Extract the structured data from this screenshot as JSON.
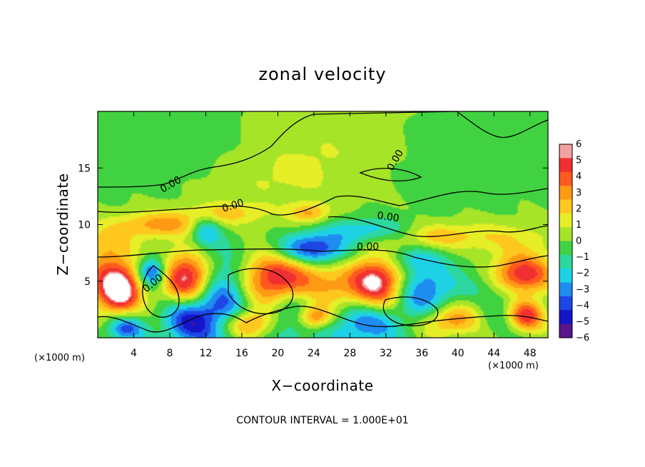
{
  "chart_data": {
    "type": "heatmap",
    "title": "zonal velocity",
    "xlabel": "X−coordinate",
    "ylabel": "Z−coordinate",
    "x_unit_left": "(×1000 m)",
    "x_unit_right": "(×1000 m)",
    "xlim": [
      0,
      50
    ],
    "ylim": [
      0,
      20
    ],
    "xticks": [
      4,
      8,
      12,
      16,
      20,
      24,
      28,
      32,
      36,
      40,
      44,
      48
    ],
    "yticks": [
      5,
      10,
      15
    ],
    "colorbar": {
      "ticks": [
        "6",
        "5",
        "4",
        "3",
        "2",
        "1",
        "0",
        "−1",
        "−2",
        "−3",
        "−4",
        "−5",
        "−6"
      ],
      "colors": [
        "#f4a0a0",
        "#f03030",
        "#ff5a1e",
        "#ff9a14",
        "#ffc81e",
        "#e6ee28",
        "#a6e428",
        "#40d240",
        "#2cd8a0",
        "#1ed2e6",
        "#1e8cf0",
        "#1e46e6",
        "#1414c8",
        "#5a148c"
      ]
    },
    "zero_contour_labels": [
      "0.00",
      "0.00",
      "0.00",
      "0.00",
      "0.00",
      "0.00"
    ],
    "contour_interval_text": "CONTOUR INTERVAL = 1.000E+01",
    "blobs": [
      {
        "x": 1.5,
        "z": 5.2,
        "v": 4.5,
        "rx": 2.2,
        "rz": 1.8
      },
      {
        "x": 2.5,
        "z": 4.0,
        "v": 5.2,
        "rx": 1.5,
        "rz": 1.3
      },
      {
        "x": 6.0,
        "z": 5.8,
        "v": -5.5,
        "rx": 1.1,
        "rz": 0.9
      },
      {
        "x": 10.0,
        "z": 5.2,
        "v": 7.0,
        "rx": 2.0,
        "rz": 1.6
      },
      {
        "x": 14.0,
        "z": 3.5,
        "v": -5.0,
        "rx": 2.3,
        "rz": 2.8
      },
      {
        "x": 20.0,
        "z": 5.0,
        "v": 7.0,
        "rx": 3.2,
        "rz": 2.0
      },
      {
        "x": 22.5,
        "z": 2.5,
        "v": -5.5,
        "rx": 2.8,
        "rz": 1.8
      },
      {
        "x": 24.0,
        "z": 1.8,
        "v": 6.5,
        "rx": 1.5,
        "rz": 0.8
      },
      {
        "x": 23.5,
        "z": 7.8,
        "v": -6.0,
        "rx": 3.0,
        "rz": 1.0
      },
      {
        "x": 25.5,
        "z": 4.0,
        "v": 3.5,
        "rx": 2.5,
        "rz": 1.5
      },
      {
        "x": 31.0,
        "z": 4.8,
        "v": 7.0,
        "rx": 2.2,
        "rz": 2.0
      },
      {
        "x": 30.0,
        "z": 1.5,
        "v": -5.0,
        "rx": 2.5,
        "rz": 1.5
      },
      {
        "x": 36.0,
        "z": 4.0,
        "v": -4.0,
        "rx": 2.2,
        "rz": 2.0
      },
      {
        "x": 39.0,
        "z": 1.5,
        "v": 4.5,
        "rx": 2.5,
        "rz": 1.0
      },
      {
        "x": 47.0,
        "z": 5.5,
        "v": 7.0,
        "rx": 2.5,
        "rz": 1.3
      },
      {
        "x": 47.5,
        "z": 2.0,
        "v": 6.5,
        "rx": 1.5,
        "rz": 1.0
      },
      {
        "x": 44.0,
        "z": 3.5,
        "v": -3.0,
        "rx": 3.5,
        "rz": 2.0
      },
      {
        "x": 3.0,
        "z": 0.8,
        "v": -4.5,
        "rx": 1.5,
        "rz": 0.8
      },
      {
        "x": 10.0,
        "z": 1.5,
        "v": -5.0,
        "rx": 2.0,
        "rz": 1.5
      },
      {
        "x": 16.5,
        "z": 1.2,
        "v": 5.0,
        "rx": 2.0,
        "rz": 0.9
      },
      {
        "x": 7.0,
        "z": 10.0,
        "v": 3.5,
        "rx": 3.5,
        "rz": 0.8
      },
      {
        "x": 12.0,
        "z": 9.5,
        "v": -3.5,
        "rx": 1.2,
        "rz": 1.0
      },
      {
        "x": 14.0,
        "z": 11.0,
        "v": 2.5,
        "rx": 3.0,
        "rz": 0.7
      },
      {
        "x": 23.5,
        "z": 11.0,
        "v": 3.0,
        "rx": 1.5,
        "rz": 0.6
      },
      {
        "x": 30.0,
        "z": 9.5,
        "v": -2.8,
        "rx": 3.5,
        "rz": 0.8
      },
      {
        "x": 37.5,
        "z": 9.0,
        "v": 2.5,
        "rx": 3.0,
        "rz": 0.8
      },
      {
        "x": 45.0,
        "z": 8.8,
        "v": 1.8,
        "rx": 4.0,
        "rz": 1.0
      },
      {
        "x": 20.0,
        "z": 14.0,
        "v": 1.0,
        "rx": 6.0,
        "rz": 2.0
      },
      {
        "x": 26.0,
        "z": 17.5,
        "v": 0.8,
        "rx": 6.0,
        "rz": 2.5
      },
      {
        "x": 8.0,
        "z": 17.0,
        "v": -0.8,
        "rx": 6.0,
        "rz": 2.5
      },
      {
        "x": 40.0,
        "z": 16.0,
        "v": -0.6,
        "rx": 6.0,
        "rz": 3.0
      },
      {
        "x": 1.0,
        "z": 8.5,
        "v": 2.0,
        "rx": 2.0,
        "rz": 1.0
      },
      {
        "x": 42.0,
        "z": 3.0,
        "v": 2.0,
        "rx": 2.0,
        "rz": 1.0
      },
      {
        "x": 34.0,
        "z": 7.0,
        "v": -2.0,
        "rx": 3.0,
        "rz": 0.8
      }
    ]
  }
}
